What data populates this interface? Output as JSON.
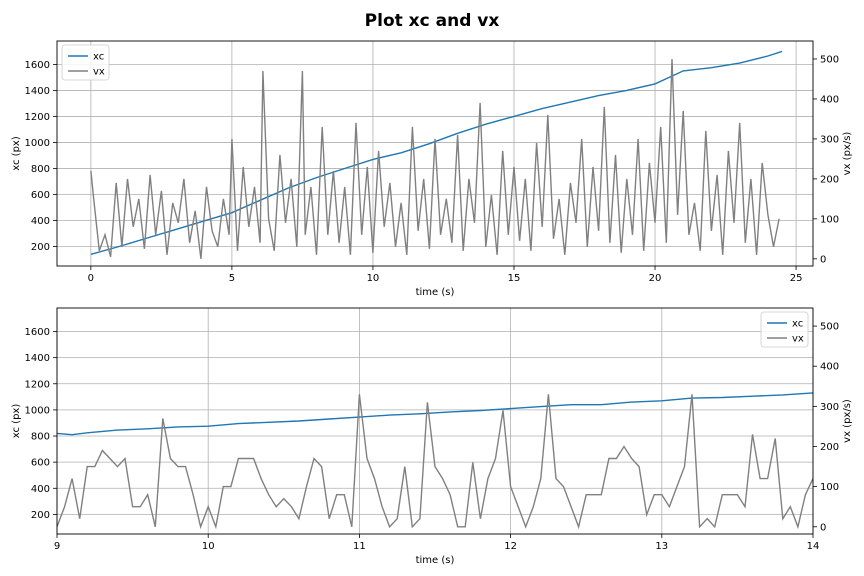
{
  "figure": {
    "title": "Plot xc and vx"
  },
  "colors": {
    "xc": "#1f77b4",
    "vx": "#808080",
    "grid": "#b0b0b0",
    "axes": "#000000"
  },
  "chart_data": [
    {
      "type": "line",
      "xlabel": "time (s)",
      "ylabel": "xc (px)",
      "y2label": "vx (px/s)",
      "xlim": [
        -1.2,
        25.6
      ],
      "ylim": [
        50,
        1780
      ],
      "y2lim": [
        -18,
        545
      ],
      "xticks": [
        0,
        5,
        10,
        15,
        20,
        25
      ],
      "yticks": [
        200,
        400,
        600,
        800,
        1000,
        1200,
        1400,
        1600
      ],
      "y2ticks": [
        0,
        100,
        200,
        300,
        400,
        500
      ],
      "grid": true,
      "legend": {
        "placement": "top-left",
        "entries": [
          "xc",
          "vx"
        ]
      },
      "series": [
        {
          "name": "xc",
          "axis": "left",
          "x": [
            0,
            1,
            2,
            3,
            4,
            5,
            6,
            7,
            8,
            9,
            10,
            11,
            12,
            13,
            14,
            15,
            16,
            17,
            18,
            19,
            20,
            21,
            22,
            23,
            24,
            24.5
          ],
          "y": [
            140,
            200,
            265,
            330,
            395,
            460,
            555,
            650,
            730,
            800,
            870,
            920,
            990,
            1070,
            1140,
            1200,
            1260,
            1310,
            1360,
            1400,
            1450,
            1550,
            1575,
            1610,
            1665,
            1700
          ]
        },
        {
          "name": "vx",
          "axis": "right",
          "x": [
            0,
            0.1,
            0.3,
            0.5,
            0.7,
            0.9,
            1.1,
            1.3,
            1.5,
            1.7,
            1.9,
            2.1,
            2.3,
            2.5,
            2.7,
            2.9,
            3.1,
            3.3,
            3.5,
            3.7,
            3.9,
            4.1,
            4.3,
            4.5,
            4.7,
            4.9,
            5.0,
            5.2,
            5.4,
            5.6,
            5.8,
            6.0,
            6.1,
            6.3,
            6.5,
            6.7,
            6.9,
            7.1,
            7.3,
            7.5,
            7.6,
            7.8,
            8.0,
            8.2,
            8.4,
            8.6,
            8.8,
            9.0,
            9.2,
            9.4,
            9.6,
            9.8,
            10.0,
            10.2,
            10.4,
            10.6,
            10.8,
            11.0,
            11.2,
            11.4,
            11.6,
            11.8,
            12.0,
            12.2,
            12.4,
            12.6,
            12.8,
            13.0,
            13.2,
            13.4,
            13.6,
            13.8,
            14.0,
            14.2,
            14.4,
            14.6,
            14.8,
            15.0,
            15.2,
            15.4,
            15.6,
            15.8,
            16.0,
            16.2,
            16.4,
            16.6,
            16.8,
            17.0,
            17.2,
            17.4,
            17.6,
            17.8,
            18.0,
            18.2,
            18.4,
            18.6,
            18.8,
            19.0,
            19.2,
            19.4,
            19.6,
            19.8,
            20.0,
            20.2,
            20.4,
            20.6,
            20.8,
            21.0,
            21.2,
            21.4,
            21.6,
            21.8,
            22.0,
            22.2,
            22.4,
            22.6,
            22.8,
            23.0,
            23.2,
            23.4,
            23.6,
            23.8,
            24.0,
            24.2,
            24.4
          ],
          "y": [
            220,
            150,
            20,
            60,
            5,
            190,
            30,
            200,
            80,
            150,
            25,
            210,
            60,
            170,
            10,
            140,
            90,
            200,
            40,
            120,
            0,
            180,
            70,
            30,
            150,
            60,
            300,
            20,
            230,
            80,
            180,
            40,
            470,
            100,
            20,
            260,
            90,
            200,
            30,
            470,
            60,
            180,
            10,
            330,
            60,
            220,
            40,
            180,
            10,
            340,
            60,
            230,
            15,
            270,
            80,
            190,
            30,
            140,
            10,
            330,
            70,
            200,
            25,
            300,
            60,
            150,
            40,
            310,
            20,
            200,
            90,
            390,
            30,
            160,
            10,
            270,
            60,
            230,
            45,
            200,
            20,
            290,
            80,
            360,
            50,
            150,
            10,
            190,
            90,
            300,
            30,
            230,
            70,
            380,
            40,
            260,
            15,
            200,
            60,
            300,
            20,
            240,
            90,
            330,
            40,
            500,
            110,
            370,
            60,
            140,
            20,
            320,
            70,
            210,
            10,
            270,
            90,
            340,
            40,
            200,
            10,
            240,
            110,
            30,
            100
          ]
        }
      ]
    },
    {
      "type": "line",
      "xlabel": "time (s)",
      "ylabel": "xc (px)",
      "y2label": "vx (px/s)",
      "xlim": [
        9,
        14
      ],
      "ylim": [
        50,
        1780
      ],
      "y2lim": [
        -18,
        545
      ],
      "xticks": [
        9,
        10,
        11,
        12,
        13,
        14
      ],
      "yticks": [
        200,
        400,
        600,
        800,
        1000,
        1200,
        1400,
        1600
      ],
      "y2ticks": [
        0,
        100,
        200,
        300,
        400,
        500
      ],
      "grid": true,
      "legend": {
        "placement": "top-right",
        "entries": [
          "xc",
          "vx"
        ]
      },
      "series": [
        {
          "name": "xc",
          "axis": "left",
          "x": [
            9,
            9.1,
            9.2,
            9.4,
            9.6,
            9.8,
            10.0,
            10.2,
            10.4,
            10.6,
            10.8,
            11.0,
            11.2,
            11.4,
            11.6,
            11.8,
            12.0,
            12.2,
            12.4,
            12.6,
            12.8,
            13.0,
            13.2,
            13.4,
            13.6,
            13.8,
            14.0
          ],
          "y": [
            820,
            810,
            825,
            845,
            855,
            870,
            875,
            895,
            905,
            915,
            930,
            945,
            960,
            970,
            985,
            995,
            1010,
            1025,
            1040,
            1040,
            1060,
            1070,
            1090,
            1095,
            1105,
            1115,
            1130
          ]
        },
        {
          "name": "vx",
          "axis": "right",
          "x": [
            9.0,
            9.05,
            9.1,
            9.15,
            9.2,
            9.25,
            9.3,
            9.35,
            9.4,
            9.45,
            9.5,
            9.55,
            9.6,
            9.65,
            9.7,
            9.75,
            9.8,
            9.85,
            9.9,
            9.95,
            10.0,
            10.05,
            10.1,
            10.15,
            10.2,
            10.25,
            10.3,
            10.35,
            10.4,
            10.45,
            10.5,
            10.55,
            10.6,
            10.65,
            10.7,
            10.75,
            10.8,
            10.85,
            10.9,
            10.95,
            11.0,
            11.05,
            11.1,
            11.15,
            11.2,
            11.25,
            11.3,
            11.35,
            11.4,
            11.45,
            11.5,
            11.55,
            11.6,
            11.65,
            11.7,
            11.75,
            11.8,
            11.85,
            11.9,
            11.95,
            12.0,
            12.05,
            12.1,
            12.15,
            12.2,
            12.25,
            12.3,
            12.35,
            12.4,
            12.45,
            12.5,
            12.55,
            12.6,
            12.65,
            12.7,
            12.75,
            12.8,
            12.85,
            12.9,
            12.95,
            13.0,
            13.05,
            13.1,
            13.15,
            13.2,
            13.25,
            13.3,
            13.35,
            13.4,
            13.45,
            13.5,
            13.55,
            13.6,
            13.65,
            13.7,
            13.75,
            13.8,
            13.85,
            13.9,
            13.95,
            14.0
          ],
          "y": [
            0,
            50,
            120,
            20,
            150,
            150,
            190,
            170,
            150,
            170,
            50,
            50,
            80,
            0,
            270,
            170,
            150,
            150,
            80,
            0,
            50,
            0,
            100,
            100,
            170,
            170,
            170,
            120,
            80,
            50,
            70,
            50,
            20,
            100,
            170,
            150,
            20,
            80,
            80,
            0,
            330,
            170,
            120,
            50,
            0,
            20,
            150,
            0,
            20,
            310,
            150,
            120,
            80,
            0,
            0,
            160,
            20,
            120,
            170,
            290,
            100,
            50,
            0,
            50,
            120,
            330,
            120,
            100,
            50,
            0,
            80,
            80,
            80,
            170,
            170,
            200,
            170,
            150,
            30,
            80,
            80,
            50,
            100,
            150,
            330,
            0,
            20,
            0,
            80,
            80,
            80,
            50,
            230,
            120,
            120,
            220,
            20,
            50,
            0,
            80,
            120
          ]
        }
      ]
    }
  ]
}
